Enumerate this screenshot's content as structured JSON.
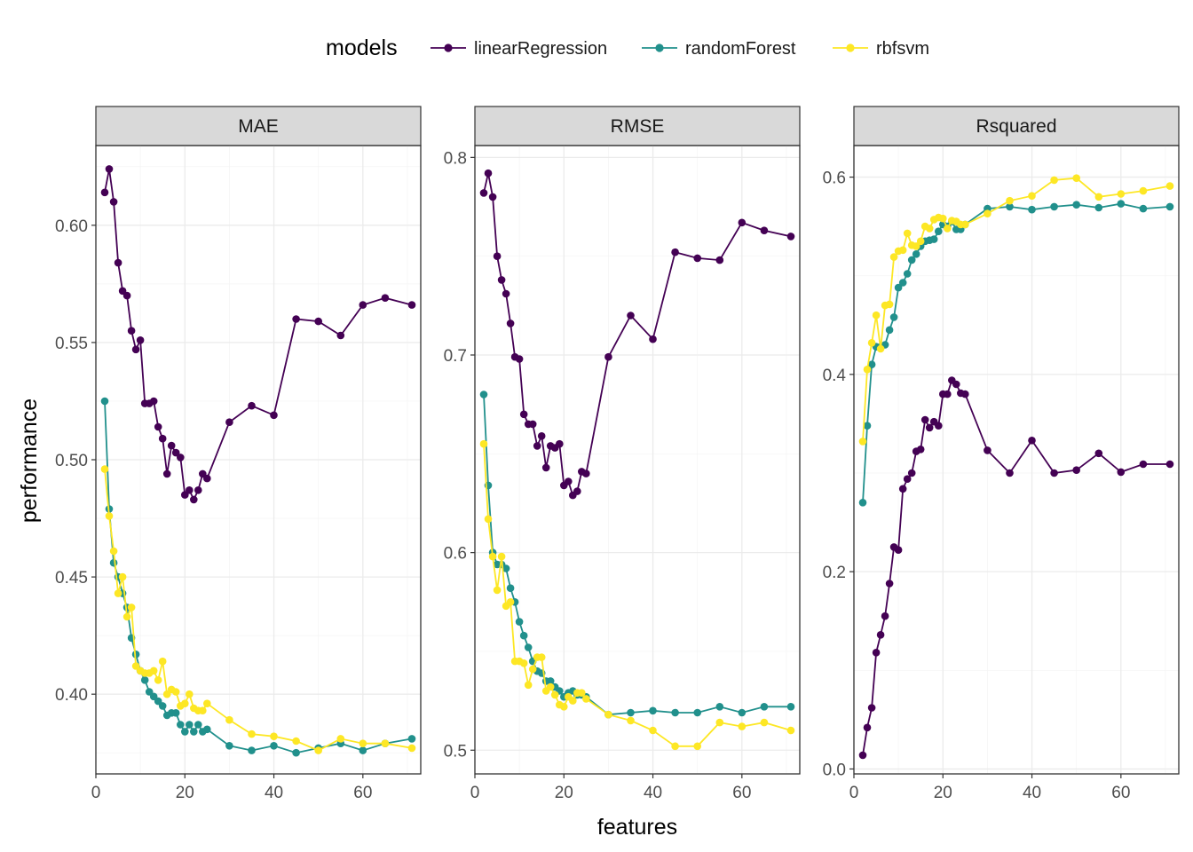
{
  "chart_data": {
    "type": "line",
    "xlabel": "features",
    "ylabel": "performance",
    "legend": {
      "title": "models",
      "position": "top",
      "entries": [
        "linearRegression",
        "randomForest",
        "rbfsvm"
      ]
    },
    "colors": {
      "linearRegression": "#440154",
      "randomForest": "#21908C",
      "rbfsvm": "#FDE725"
    },
    "grid": true,
    "xlim": [
      0,
      73
    ],
    "xticks": [
      0,
      20,
      40,
      60
    ],
    "panels": [
      {
        "title": "MAE",
        "ylim": [
          0.366,
          0.634
        ],
        "yticks": [
          0.4,
          0.45,
          0.5,
          0.55,
          0.6
        ],
        "ytick_labels": [
          "0.40",
          "0.45",
          "0.50",
          "0.55",
          "0.60"
        ],
        "series": [
          {
            "name": "linearRegression",
            "x": [
              2,
              3,
              4,
              5,
              6,
              7,
              8,
              9,
              10,
              11,
              12,
              13,
              14,
              15,
              16,
              17,
              18,
              19,
              20,
              21,
              22,
              23,
              24,
              25,
              30,
              35,
              40,
              45,
              50,
              55,
              60,
              65,
              71
            ],
            "y": [
              0.614,
              0.624,
              0.61,
              0.584,
              0.572,
              0.57,
              0.555,
              0.547,
              0.551,
              0.524,
              0.524,
              0.525,
              0.514,
              0.509,
              0.494,
              0.506,
              0.503,
              0.501,
              0.485,
              0.487,
              0.483,
              0.487,
              0.494,
              0.492,
              0.516,
              0.523,
              0.519,
              0.56,
              0.559,
              0.553,
              0.566,
              0.569,
              0.566
            ]
          },
          {
            "name": "randomForest",
            "x": [
              2,
              3,
              4,
              5,
              6,
              7,
              8,
              9,
              10,
              11,
              12,
              13,
              14,
              15,
              16,
              17,
              18,
              19,
              20,
              21,
              22,
              23,
              24,
              25,
              30,
              35,
              40,
              45,
              50,
              55,
              60,
              65,
              71
            ],
            "y": [
              0.525,
              0.479,
              0.456,
              0.45,
              0.443,
              0.437,
              0.424,
              0.417,
              0.41,
              0.406,
              0.401,
              0.399,
              0.397,
              0.395,
              0.391,
              0.392,
              0.392,
              0.387,
              0.384,
              0.387,
              0.384,
              0.387,
              0.384,
              0.385,
              0.378,
              0.376,
              0.378,
              0.375,
              0.377,
              0.379,
              0.376,
              0.379,
              0.381
            ]
          },
          {
            "name": "rbfsvm",
            "x": [
              2,
              3,
              4,
              5,
              6,
              7,
              8,
              9,
              10,
              11,
              12,
              13,
              14,
              15,
              16,
              17,
              18,
              19,
              20,
              21,
              22,
              23,
              24,
              25,
              30,
              35,
              40,
              45,
              50,
              55,
              60,
              65,
              71
            ],
            "y": [
              0.496,
              0.476,
              0.461,
              0.443,
              0.45,
              0.433,
              0.437,
              0.412,
              0.41,
              0.409,
              0.409,
              0.41,
              0.406,
              0.414,
              0.4,
              0.402,
              0.401,
              0.395,
              0.396,
              0.4,
              0.394,
              0.393,
              0.393,
              0.396,
              0.389,
              0.383,
              0.382,
              0.38,
              0.376,
              0.381,
              0.379,
              0.379,
              0.377
            ]
          }
        ]
      },
      {
        "title": "RMSE",
        "ylim": [
          0.488,
          0.806
        ],
        "yticks": [
          0.5,
          0.6,
          0.7,
          0.8
        ],
        "ytick_labels": [
          "0.5",
          "0.6",
          "0.7",
          "0.8"
        ],
        "series": [
          {
            "name": "linearRegression",
            "x": [
              2,
              3,
              4,
              5,
              6,
              7,
              8,
              9,
              10,
              11,
              12,
              13,
              14,
              15,
              16,
              17,
              18,
              19,
              20,
              21,
              22,
              23,
              24,
              25,
              30,
              35,
              40,
              45,
              50,
              55,
              60,
              65,
              71
            ],
            "y": [
              0.782,
              0.792,
              0.78,
              0.75,
              0.738,
              0.731,
              0.716,
              0.699,
              0.698,
              0.67,
              0.665,
              0.665,
              0.654,
              0.659,
              0.643,
              0.654,
              0.653,
              0.655,
              0.634,
              0.636,
              0.629,
              0.631,
              0.641,
              0.64,
              0.699,
              0.72,
              0.708,
              0.752,
              0.749,
              0.748,
              0.767,
              0.763,
              0.76
            ]
          },
          {
            "name": "randomForest",
            "x": [
              2,
              3,
              4,
              5,
              6,
              7,
              8,
              9,
              10,
              11,
              12,
              13,
              14,
              15,
              16,
              17,
              18,
              19,
              20,
              21,
              22,
              23,
              24,
              25,
              30,
              35,
              40,
              45,
              50,
              55,
              60,
              65,
              71
            ],
            "y": [
              0.68,
              0.634,
              0.6,
              0.594,
              0.594,
              0.592,
              0.582,
              0.575,
              0.565,
              0.558,
              0.552,
              0.545,
              0.54,
              0.539,
              0.535,
              0.535,
              0.532,
              0.53,
              0.527,
              0.529,
              0.53,
              0.528,
              0.528,
              0.527,
              0.518,
              0.519,
              0.52,
              0.519,
              0.519,
              0.522,
              0.519,
              0.522,
              0.522
            ]
          },
          {
            "name": "rbfsvm",
            "x": [
              2,
              3,
              4,
              5,
              6,
              7,
              8,
              9,
              10,
              11,
              12,
              13,
              14,
              15,
              16,
              17,
              18,
              19,
              20,
              21,
              22,
              23,
              24,
              25,
              30,
              35,
              40,
              45,
              50,
              55,
              60,
              65,
              71
            ],
            "y": [
              0.655,
              0.617,
              0.598,
              0.581,
              0.598,
              0.573,
              0.575,
              0.545,
              0.545,
              0.544,
              0.533,
              0.541,
              0.547,
              0.547,
              0.53,
              0.532,
              0.528,
              0.523,
              0.522,
              0.527,
              0.525,
              0.529,
              0.529,
              0.526,
              0.518,
              0.515,
              0.51,
              0.502,
              0.502,
              0.514,
              0.512,
              0.514,
              0.51
            ]
          }
        ]
      },
      {
        "title": "Rsquared",
        "ylim": [
          -0.005,
          0.632
        ],
        "yticks": [
          0.0,
          0.2,
          0.4,
          0.6
        ],
        "ytick_labels": [
          "0.0",
          "0.2",
          "0.4",
          "0.6"
        ],
        "series": [
          {
            "name": "linearRegression",
            "x": [
              2,
              3,
              4,
              5,
              6,
              7,
              8,
              9,
              10,
              11,
              12,
              13,
              14,
              15,
              16,
              17,
              18,
              19,
              20,
              21,
              22,
              23,
              24,
              25,
              30,
              35,
              40,
              45,
              50,
              55,
              60,
              65,
              71
            ],
            "y": [
              0.014,
              0.042,
              0.062,
              0.118,
              0.136,
              0.155,
              0.188,
              0.225,
              0.222,
              0.284,
              0.294,
              0.3,
              0.322,
              0.324,
              0.354,
              0.346,
              0.352,
              0.348,
              0.38,
              0.38,
              0.394,
              0.39,
              0.381,
              0.38,
              0.323,
              0.3,
              0.333,
              0.3,
              0.303,
              0.32,
              0.301,
              0.309,
              0.309
            ]
          },
          {
            "name": "randomForest",
            "x": [
              2,
              3,
              4,
              5,
              6,
              7,
              8,
              9,
              10,
              11,
              12,
              13,
              14,
              15,
              16,
              17,
              18,
              19,
              20,
              21,
              22,
              23,
              24,
              25,
              30,
              35,
              40,
              45,
              50,
              55,
              60,
              65,
              71
            ],
            "y": [
              0.27,
              0.348,
              0.41,
              0.428,
              0.428,
              0.43,
              0.445,
              0.458,
              0.488,
              0.493,
              0.502,
              0.516,
              0.522,
              0.53,
              0.535,
              0.536,
              0.537,
              0.545,
              0.552,
              0.55,
              0.555,
              0.547,
              0.547,
              0.552,
              0.568,
              0.57,
              0.567,
              0.57,
              0.572,
              0.569,
              0.573,
              0.568,
              0.57
            ]
          },
          {
            "name": "rbfsvm",
            "x": [
              2,
              3,
              4,
              5,
              6,
              7,
              8,
              9,
              10,
              11,
              12,
              13,
              14,
              15,
              16,
              17,
              18,
              19,
              20,
              21,
              22,
              23,
              24,
              25,
              30,
              35,
              40,
              45,
              50,
              55,
              60,
              65,
              71
            ],
            "y": [
              0.332,
              0.405,
              0.432,
              0.46,
              0.426,
              0.47,
              0.471,
              0.519,
              0.525,
              0.526,
              0.543,
              0.531,
              0.53,
              0.535,
              0.55,
              0.548,
              0.557,
              0.559,
              0.558,
              0.548,
              0.556,
              0.555,
              0.552,
              0.552,
              0.563,
              0.576,
              0.581,
              0.597,
              0.599,
              0.58,
              0.583,
              0.586,
              0.591
            ]
          }
        ]
      }
    ]
  }
}
